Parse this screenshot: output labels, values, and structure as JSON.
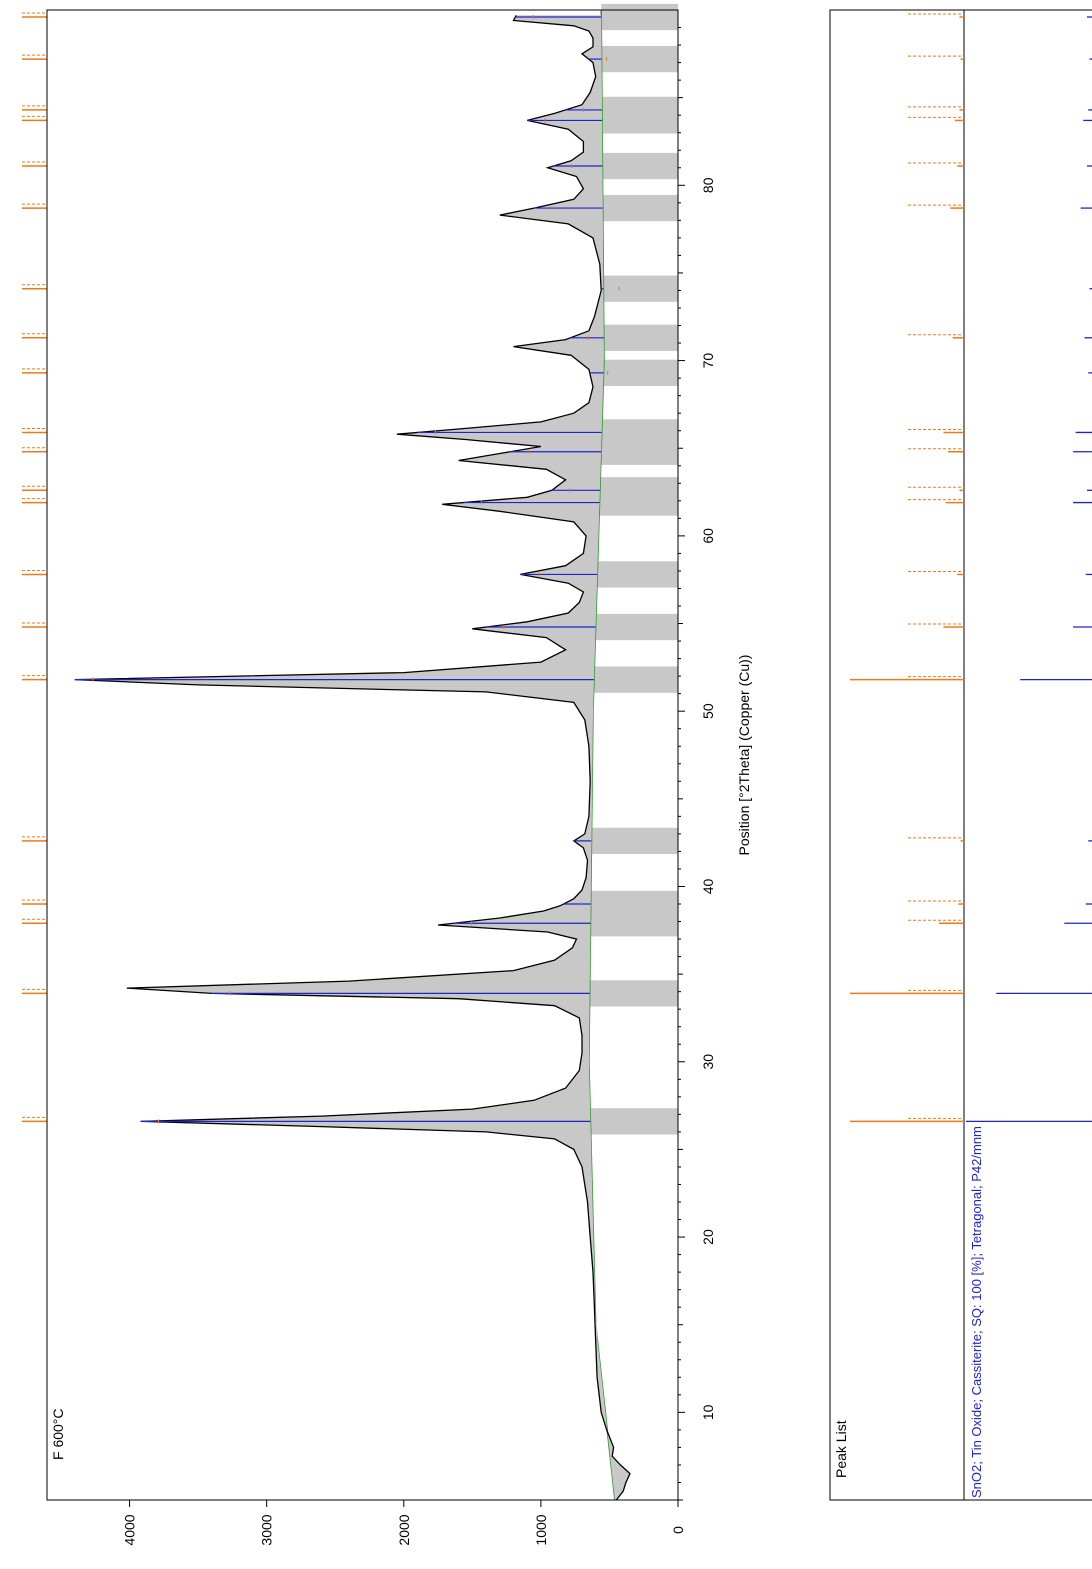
{
  "chart_data": [
    {
      "type": "line",
      "title": "F 600°C",
      "xlabel": "Position [°2Theta] (Copper (Cu))",
      "ylabel": "",
      "xlim": [
        5,
        90
      ],
      "ylim": [
        0,
        4500
      ],
      "x_ticks": [
        10,
        20,
        30,
        40,
        50,
        60,
        70,
        80
      ],
      "y_ticks": [
        0,
        1000,
        2000,
        3000,
        4000
      ],
      "orientation": "rotated-90-clockwise",
      "grid": false,
      "series": [
        {
          "kind": "measured",
          "color": "#000000",
          "x": [
            5.0,
            5.5,
            6.0,
            6.5,
            7.0,
            7.5,
            8.0,
            9.0,
            10.0,
            12.0,
            14.0,
            16.0,
            18.0,
            20.0,
            22.0,
            24.0,
            25.0,
            25.6,
            26.0,
            26.3,
            26.6,
            26.9,
            27.3,
            27.8,
            28.5,
            29.5,
            30.5,
            31.5,
            32.5,
            33.2,
            33.6,
            33.9,
            34.2,
            34.6,
            35.2,
            35.8,
            36.5,
            37.0,
            37.4,
            37.8,
            38.2,
            38.6,
            38.9,
            39.3,
            39.8,
            40.5,
            41.5,
            42.2,
            42.6,
            43.0,
            44.0,
            46.0,
            48.0,
            49.5,
            50.5,
            51.1,
            51.5,
            51.8,
            52.2,
            52.8,
            53.5,
            54.2,
            54.7,
            55.1,
            55.6,
            56.2,
            56.8,
            57.3,
            57.8,
            58.3,
            59.0,
            60.0,
            60.8,
            61.4,
            61.8,
            62.2,
            62.6,
            63.2,
            63.8,
            64.3,
            64.7,
            65.1,
            65.5,
            65.8,
            66.1,
            66.5,
            67.0,
            67.6,
            68.5,
            69.5,
            70.3,
            70.8,
            71.2,
            71.7,
            72.5,
            74.0,
            75.5,
            77.0,
            77.8,
            78.3,
            78.7,
            79.2,
            79.8,
            80.5,
            81.0,
            81.4,
            81.9,
            82.5,
            83.2,
            83.7,
            84.1,
            84.6,
            85.3,
            86.2,
            87.0,
            87.5,
            87.9,
            88.4,
            88.8,
            89.1,
            89.4,
            89.7
          ],
          "y": [
            450,
            400,
            380,
            350,
            420,
            480,
            470,
            520,
            560,
            590,
            600,
            610,
            620,
            640,
            660,
            700,
            760,
            900,
            1400,
            2600,
            3920,
            2600,
            1500,
            1050,
            820,
            720,
            700,
            700,
            720,
            900,
            1600,
            3400,
            4020,
            2400,
            1200,
            900,
            770,
            740,
            950,
            1750,
            1300,
            980,
            860,
            760,
            700,
            670,
            660,
            690,
            760,
            680,
            650,
            640,
            650,
            680,
            760,
            1400,
            3500,
            4400,
            2000,
            1000,
            820,
            960,
            1500,
            1100,
            800,
            720,
            690,
            800,
            1150,
            820,
            690,
            670,
            760,
            1300,
            1720,
            1100,
            920,
            820,
            960,
            1600,
            1300,
            1000,
            1550,
            2050,
            1600,
            1000,
            760,
            650,
            620,
            650,
            780,
            1200,
            820,
            650,
            610,
            560,
            570,
            620,
            800,
            1300,
            1050,
            760,
            690,
            740,
            950,
            780,
            690,
            690,
            800,
            1100,
            900,
            700,
            640,
            600,
            620,
            700,
            620,
            620,
            650,
            760,
            1200,
            1180
          ]
        },
        {
          "kind": "background",
          "color": "#2a9a2a",
          "x": [
            5,
            15,
            30,
            50,
            70,
            90
          ],
          "y": [
            460,
            600,
            650,
            620,
            540,
            560
          ]
        }
      ],
      "peak_markers": [
        26.6,
        33.9,
        37.9,
        39.0,
        42.6,
        51.8,
        54.8,
        57.8,
        61.9,
        62.6,
        64.8,
        65.9,
        69.3,
        71.3,
        74.1,
        78.7,
        81.1,
        83.7,
        84.3,
        87.2,
        89.6
      ],
      "reflection_ticks": [
        26.6,
        33.9,
        37.9,
        39.0,
        42.6,
        51.8,
        54.8,
        57.8,
        61.9,
        62.6,
        64.8,
        65.9,
        71.3,
        78.7,
        81.1,
        83.7,
        84.3,
        87.2,
        89.6
      ],
      "colors": {
        "profile": "#000000",
        "background": "#2a9a2a",
        "fit": "#1f24c9",
        "peak": "#f07a1a",
        "band": "#c8c8c8"
      }
    },
    {
      "type": "bar",
      "title": "Peak List",
      "xlim": [
        5,
        90
      ],
      "reference_label": "SnO2; Tin Oxide; Cassiterite; SQ: 100 [%]; Tetragonal; P42/mnm",
      "peak_list_positions": [
        26.6,
        33.9,
        37.9,
        39.0,
        42.6,
        51.8,
        54.8,
        57.8,
        61.9,
        62.6,
        64.8,
        65.9,
        71.3,
        78.7,
        81.1,
        83.7,
        84.3,
        87.2,
        89.6
      ],
      "peak_list_heights": [
        100,
        100,
        22,
        5,
        3,
        100,
        18,
        6,
        16,
        4,
        14,
        18,
        10,
        12,
        6,
        8,
        4,
        3,
        4
      ],
      "reference_x": [
        26.6,
        33.9,
        37.9,
        39.0,
        42.6,
        51.8,
        54.8,
        57.8,
        61.9,
        62.6,
        64.8,
        65.9,
        69.3,
        71.3,
        74.1,
        78.7,
        81.1,
        83.7,
        84.3,
        87.2,
        89.6
      ],
      "reference_y": [
        100,
        76,
        22,
        5,
        3,
        57,
        15,
        5,
        15,
        4,
        15,
        13,
        3,
        6,
        2,
        9,
        4,
        7,
        3,
        2,
        4
      ]
    }
  ]
}
